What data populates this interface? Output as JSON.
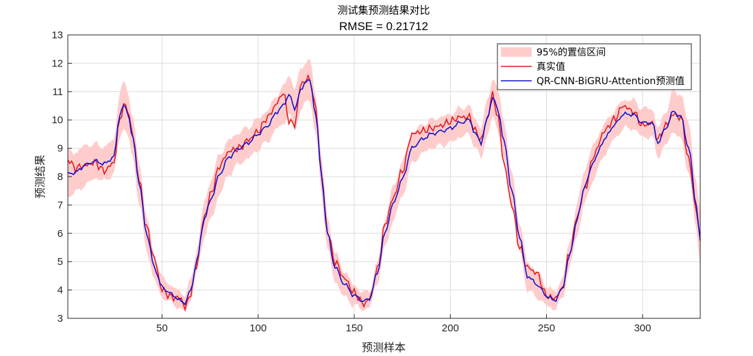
{
  "chart_data": {
    "type": "line",
    "title": "测试集预测结果对比",
    "subtitle": "RMSE = 0.21712",
    "xlabel": "预测样本",
    "ylabel": "预测结果",
    "xlim": [
      1,
      330
    ],
    "ylim": [
      3,
      13
    ],
    "xticks": [
      50,
      100,
      150,
      200,
      250,
      300
    ],
    "yticks": [
      3,
      4,
      5,
      6,
      7,
      8,
      9,
      10,
      11,
      12,
      13
    ],
    "grid": true,
    "legend_position": "top-right",
    "colors": {
      "band": "#ffcccc",
      "actual": "#e41a1c",
      "predicted": "#1010d0"
    },
    "anchors": {
      "x": [
        1,
        5,
        10,
        15,
        20,
        25,
        28,
        30,
        32,
        35,
        38,
        42,
        46,
        50,
        55,
        60,
        62,
        65,
        68,
        72,
        76,
        80,
        85,
        90,
        95,
        100,
        105,
        110,
        113,
        116,
        119,
        122,
        125,
        127,
        130,
        133,
        136,
        140,
        145,
        150,
        155,
        158,
        162,
        166,
        170,
        175,
        180,
        185,
        190,
        195,
        200,
        205,
        210,
        213,
        216,
        219,
        222,
        225,
        228,
        232,
        236,
        240,
        245,
        250,
        254,
        258,
        262,
        266,
        270,
        275,
        280,
        285,
        290,
        295,
        300,
        305,
        308,
        312,
        316,
        320,
        324,
        328,
        330
      ],
      "predicted": [
        8.1,
        8.15,
        8.4,
        8.55,
        8.45,
        8.7,
        10.2,
        10.5,
        10.3,
        9.3,
        7.8,
        6.0,
        4.8,
        4.1,
        3.85,
        3.6,
        3.55,
        4.0,
        5.0,
        6.5,
        7.3,
        8.1,
        8.7,
        9.0,
        9.2,
        9.5,
        9.8,
        10.3,
        10.5,
        10.9,
        10.4,
        11.0,
        11.4,
        11.35,
        10.2,
        8.0,
        6.0,
        4.8,
        4.2,
        3.8,
        3.6,
        3.7,
        4.6,
        6.0,
        7.0,
        7.9,
        9.0,
        9.3,
        9.5,
        9.6,
        9.7,
        9.9,
        10.0,
        9.5,
        9.2,
        10.0,
        10.8,
        10.3,
        9.2,
        7.5,
        5.9,
        4.5,
        4.2,
        3.8,
        3.62,
        4.0,
        5.2,
        6.5,
        7.7,
        8.6,
        9.3,
        9.8,
        10.2,
        10.2,
        9.9,
        9.9,
        9.2,
        9.7,
        10.3,
        10.1,
        9.0,
        7.0,
        5.7
      ],
      "actual": [
        8.6,
        8.3,
        8.4,
        8.5,
        8.2,
        8.5,
        10.0,
        10.5,
        10.4,
        9.4,
        7.9,
        6.2,
        5.1,
        4.0,
        3.75,
        3.7,
        3.35,
        3.9,
        4.9,
        6.6,
        7.5,
        8.4,
        8.9,
        9.0,
        9.3,
        9.6,
        10.1,
        10.6,
        11.0,
        10.0,
        9.8,
        11.2,
        11.45,
        11.4,
        10.4,
        8.1,
        6.1,
        5.0,
        4.4,
        3.9,
        3.5,
        3.7,
        4.7,
        6.3,
        7.2,
        8.2,
        9.5,
        9.6,
        9.7,
        9.8,
        9.95,
        10.1,
        10.1,
        9.6,
        9.3,
        10.0,
        10.9,
        10.0,
        8.4,
        7.0,
        5.5,
        4.8,
        4.6,
        3.8,
        3.7,
        4.0,
        5.3,
        6.6,
        7.6,
        8.8,
        9.6,
        10.0,
        10.5,
        10.3,
        9.8,
        9.9,
        9.3,
        9.8,
        10.2,
        10.1,
        8.6,
        6.8,
        5.7
      ],
      "band_half_width": [
        0.8,
        0.7,
        0.7,
        0.6,
        0.6,
        0.6,
        0.8,
        0.8,
        0.8,
        0.7,
        0.7,
        0.6,
        0.45,
        0.35,
        0.3,
        0.3,
        0.3,
        0.35,
        0.4,
        0.6,
        0.7,
        0.7,
        0.6,
        0.55,
        0.55,
        0.55,
        0.55,
        0.6,
        0.65,
        0.7,
        0.7,
        0.75,
        0.7,
        0.7,
        0.7,
        0.6,
        0.55,
        0.5,
        0.45,
        0.35,
        0.3,
        0.3,
        0.35,
        0.5,
        0.6,
        0.6,
        0.55,
        0.5,
        0.5,
        0.5,
        0.5,
        0.5,
        0.5,
        0.5,
        0.55,
        0.6,
        0.7,
        0.7,
        0.7,
        0.6,
        0.5,
        0.5,
        0.45,
        0.35,
        0.3,
        0.35,
        0.45,
        0.55,
        0.6,
        0.6,
        0.55,
        0.5,
        0.5,
        0.5,
        0.5,
        0.5,
        0.5,
        0.6,
        0.7,
        0.8,
        0.85,
        0.85,
        0.9
      ]
    },
    "series": [
      {
        "name": "95%的置信区间",
        "role": "band"
      },
      {
        "name": "真实值",
        "role": "actual"
      },
      {
        "name": "QR-CNN-BiGRU-Attention预测值",
        "role": "predicted"
      }
    ]
  }
}
